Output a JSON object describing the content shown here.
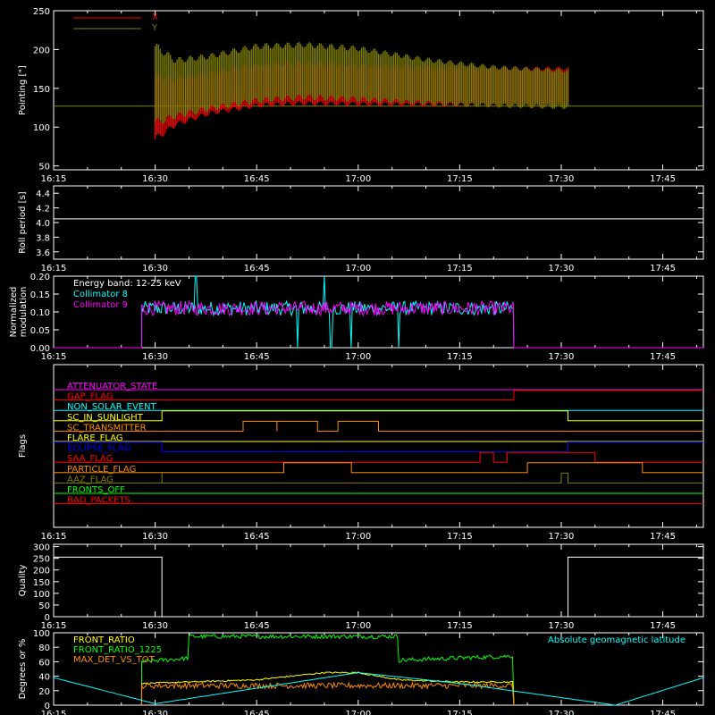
{
  "chart_data": [
    {
      "id": "pointing",
      "type": "line",
      "ylabel": "Pointing [\"]",
      "ylim": [
        45,
        250
      ],
      "yticks": [
        50,
        100,
        150,
        200,
        250
      ],
      "xlabel": "",
      "xticks": [
        "16:15",
        "16:30",
        "16:45",
        "17:00",
        "17:15",
        "17:30",
        "17:45"
      ],
      "legend": {
        "placement": "top-left",
        "entries": [
          {
            "name": "X",
            "color": "#ff0000"
          },
          {
            "name": "Y",
            "color": "#808000"
          }
        ]
      },
      "baseline": 127,
      "data_start": "16:30",
      "data_end": "17:31",
      "series": [
        {
          "name": "X",
          "color": "#ff0000",
          "upper": {
            "x": [
              "16:30",
              "16:33",
              "16:38",
              "16:45",
              "16:52",
              "17:00",
              "17:10",
              "17:20",
              "17:31"
            ],
            "y": [
              170,
              165,
              172,
              182,
              185,
              182,
              180,
              178,
              178
            ]
          },
          "lower": {
            "x": [
              "16:30",
              "16:33",
              "16:38",
              "16:45",
              "16:52",
              "17:00",
              "17:10",
              "17:20",
              "17:31"
            ],
            "y": [
              80,
              100,
              115,
              125,
              128,
              127,
              126,
              126,
              128
            ]
          }
        },
        {
          "name": "Y",
          "color": "#808000",
          "upper": {
            "x": [
              "16:30",
              "16:33",
              "16:38",
              "16:45",
              "16:52",
              "17:00",
              "17:10",
              "17:20",
              "17:31"
            ],
            "y": [
              210,
              190,
              195,
              208,
              210,
              205,
              190,
              180,
              175
            ]
          },
          "lower": {
            "x": [
              "16:30",
              "16:33",
              "16:38",
              "16:45",
              "16:52",
              "17:00",
              "17:10",
              "17:20",
              "17:31"
            ],
            "y": [
              100,
              110,
              120,
              130,
              135,
              132,
              128,
              125,
              123
            ]
          }
        }
      ]
    },
    {
      "id": "roll",
      "type": "line",
      "ylabel": "Roll period [s]",
      "ylim": [
        3.5,
        4.5
      ],
      "yticks": [
        "3.6",
        "3.8",
        "4.0",
        "4.2",
        "4.4"
      ],
      "xticks": [
        "16:15",
        "16:30",
        "16:45",
        "17:00",
        "17:15",
        "17:30",
        "17:45"
      ],
      "series": [
        {
          "name": "",
          "color": "#ffffff",
          "x": [
            "16:15",
            "17:51"
          ],
          "y": [
            4.05,
            4.05
          ]
        }
      ]
    },
    {
      "id": "modulation",
      "type": "line",
      "ylabel": "Normalized\nmodulation",
      "ylim": [
        0,
        0.2
      ],
      "yticks": [
        "0.00",
        "0.05",
        "0.10",
        "0.15",
        "0.20"
      ],
      "xticks": [
        "16:15",
        "16:30",
        "16:45",
        "17:00",
        "17:15",
        "17:30",
        "17:45"
      ],
      "annotation": "Energy band: 12-25 keV",
      "legend": {
        "placement": "top-left",
        "entries": [
          {
            "name": "Collimator 8",
            "color": "#00ffff"
          },
          {
            "name": "Collimator 9",
            "color": "#ff00ff"
          }
        ]
      },
      "active_from": "16:28",
      "active_to": "17:23",
      "mean_level": 0.11,
      "spread": 0.02,
      "dropouts": [
        "16:51",
        "16:56",
        "16:59",
        "17:06"
      ],
      "spikes": [
        {
          "x": "16:36",
          "y": 0.2
        },
        {
          "x": "16:55",
          "y": 0.2
        }
      ]
    },
    {
      "id": "flags",
      "type": "line",
      "ylabel": "Flags",
      "xticks": [
        "16:15",
        "16:30",
        "16:45",
        "17:00",
        "17:15",
        "17:30",
        "17:45"
      ],
      "flags": [
        {
          "name": "ATTENUATOR_STATE",
          "color": "#ff00ff",
          "steps": [
            [
              "16:15",
              0
            ]
          ]
        },
        {
          "name": "GAP_FLAG",
          "color": "#ff0000",
          "steps": [
            [
              "16:15",
              0
            ],
            [
              "17:23",
              1
            ]
          ]
        },
        {
          "name": "NON_SOLAR_EVENT",
          "color": "#00ffff",
          "steps": [
            [
              "16:15",
              0
            ]
          ]
        },
        {
          "name": "SC_IN_SUNLIGHT",
          "color": "#ffff00",
          "steps": [
            [
              "16:15",
              0
            ],
            [
              "16:31",
              1
            ],
            [
              "17:31",
              0
            ]
          ]
        },
        {
          "name": "SC_TRANSMITTER",
          "color": "#ff8c00",
          "steps": [
            [
              "16:15",
              0
            ],
            [
              "16:43",
              1
            ],
            [
              "16:48",
              0
            ],
            [
              "16:48",
              1
            ],
            [
              "16:54",
              0
            ],
            [
              "16:57",
              1
            ],
            [
              "17:03",
              0
            ]
          ]
        },
        {
          "name": "FLARE_FLAG",
          "color": "#ffff00",
          "steps": [
            [
              "16:15",
              0
            ]
          ]
        },
        {
          "name": "ECLIPSE_FLAG",
          "color": "#0000ff",
          "steps": [
            [
              "16:15",
              1
            ],
            [
              "16:31",
              0
            ],
            [
              "17:31",
              1
            ]
          ]
        },
        {
          "name": "SAA_FLAG",
          "color": "#ff0000",
          "steps": [
            [
              "16:15",
              0
            ],
            [
              "17:18",
              1
            ],
            [
              "17:20",
              0
            ],
            [
              "17:22",
              1
            ],
            [
              "17:35",
              0
            ]
          ]
        },
        {
          "name": "PARTICLE_FLAG",
          "color": "#ff8c00",
          "steps": [
            [
              "16:15",
              0
            ],
            [
              "16:49",
              1
            ],
            [
              "16:59",
              0
            ],
            [
              "17:25",
              1
            ],
            [
              "17:42",
              0
            ]
          ]
        },
        {
          "name": "AAZ_FLAG",
          "color": "#808000",
          "steps": [
            [
              "16:15",
              0
            ],
            [
              "16:31",
              1
            ],
            [
              "16:31",
              0
            ],
            [
              "17:30",
              1
            ],
            [
              "17:31",
              0
            ]
          ]
        },
        {
          "name": "FRONTS_OFF",
          "color": "#00ff00",
          "steps": [
            [
              "16:15",
              0
            ]
          ]
        },
        {
          "name": "BAD_PACKETS",
          "color": "#ff0000",
          "steps": [
            [
              "16:15",
              0
            ]
          ]
        }
      ]
    },
    {
      "id": "quality",
      "type": "line",
      "ylabel": "Quality",
      "ylim": [
        0,
        310
      ],
      "yticks": [
        0,
        50,
        100,
        150,
        200,
        250,
        300
      ],
      "xticks": [
        "16:15",
        "16:30",
        "16:45",
        "17:00",
        "17:15",
        "17:30",
        "17:45"
      ],
      "series": [
        {
          "name": "",
          "color": "#ffffff",
          "x": [
            "16:15",
            "16:31",
            "16:31",
            "17:31",
            "17:31",
            "17:51"
          ],
          "y": [
            255,
            255,
            0,
            0,
            255,
            255
          ]
        }
      ]
    },
    {
      "id": "front",
      "type": "line",
      "ylabel": "Degrees or %",
      "ylim": [
        0,
        100
      ],
      "yticks": [
        0,
        20,
        40,
        60,
        80,
        100
      ],
      "xticks": [
        "16:15",
        "16:30",
        "16:45",
        "17:00",
        "17:15",
        "17:30",
        "17:45"
      ],
      "legend": {
        "placement": "top-left",
        "entries": [
          {
            "name": "FRONT_RATIO",
            "color": "#ffff00"
          },
          {
            "name": "FRONT_RATIO_1225",
            "color": "#00ff00"
          },
          {
            "name": "MAX_DET_VS_TOT",
            "color": "#ff8c00"
          }
        ]
      },
      "right_label": "Absolute geomagnetic latitude",
      "series": [
        {
          "name": "FRONT_RATIO_1225",
          "color": "#00ff00",
          "x": [
            "16:28",
            "16:28",
            "16:35",
            "16:35",
            "17:06",
            "17:06",
            "17:23",
            "17:23"
          ],
          "y": [
            0,
            60,
            65,
            95,
            95,
            62,
            68,
            0
          ],
          "noise": 3
        },
        {
          "name": "FRONT_RATIO",
          "color": "#ffff00",
          "x": [
            "16:28",
            "16:28",
            "16:45",
            "16:55",
            "17:00",
            "17:06",
            "17:15",
            "17:23",
            "17:23"
          ],
          "y": [
            0,
            30,
            35,
            45,
            45,
            35,
            32,
            32,
            0
          ],
          "noise": 1
        },
        {
          "name": "MAX_DET_VS_TOT",
          "color": "#ff8c00",
          "x": [
            "16:28",
            "16:28",
            "17:23",
            "17:23"
          ],
          "y": [
            0,
            27,
            27,
            0
          ],
          "noise": 4
        },
        {
          "name": "Absolute geomagnetic latitude",
          "color": "#00ffff",
          "x": [
            "16:15",
            "16:30",
            "17:00",
            "17:15",
            "17:38",
            "17:51"
          ],
          "y": [
            38,
            2,
            45,
            30,
            0,
            38
          ]
        }
      ]
    }
  ]
}
